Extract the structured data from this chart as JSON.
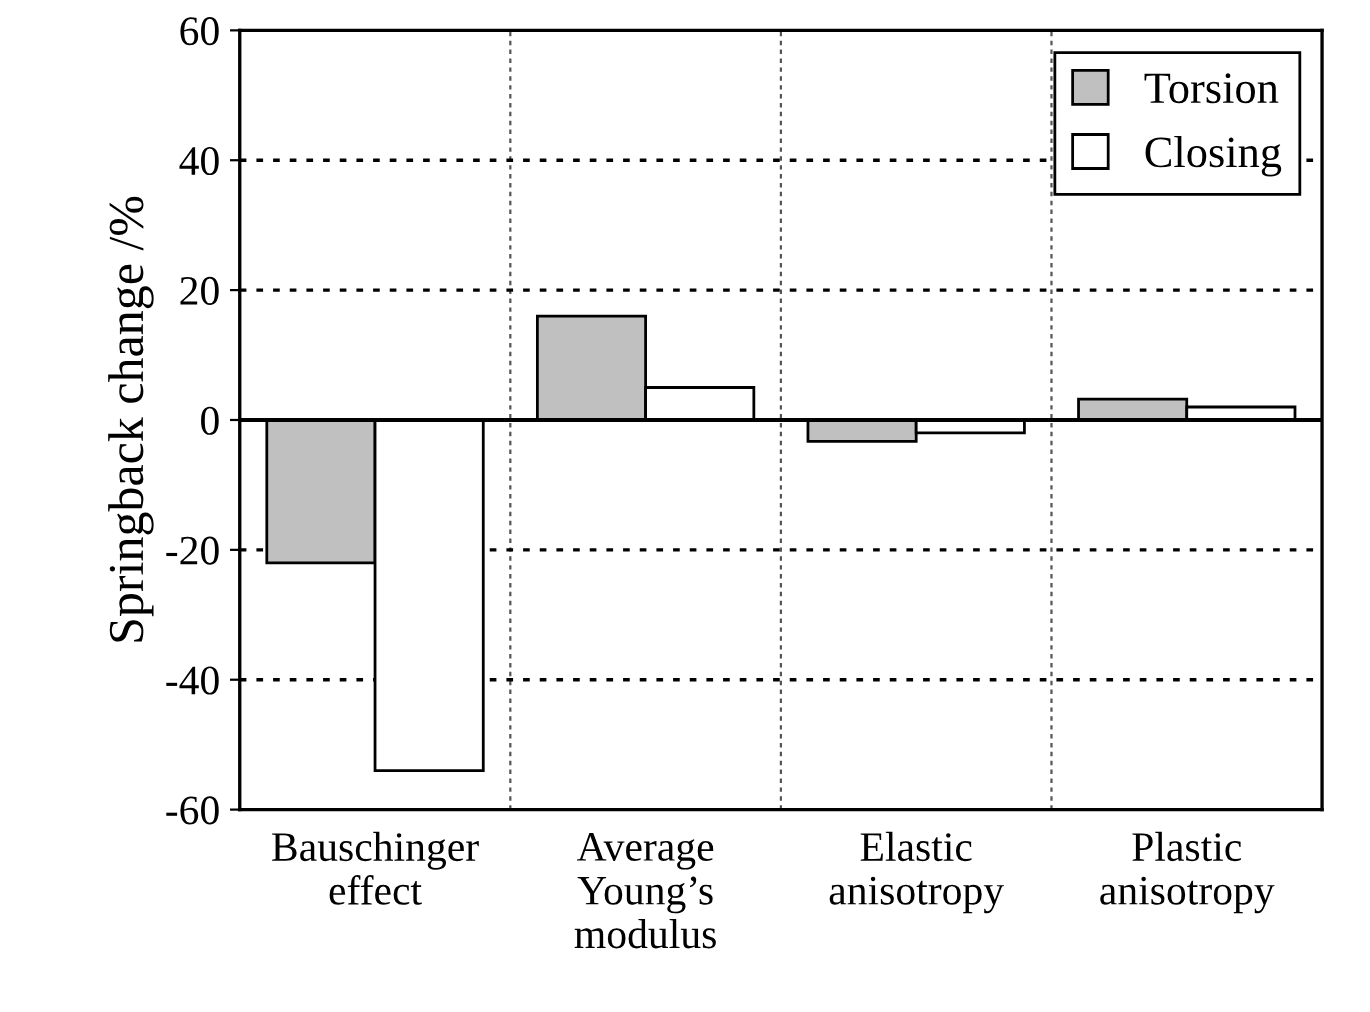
{
  "chart_data": {
    "type": "bar",
    "ylabel": "Springback change /%",
    "categories": [
      "Bauschinger\neffect",
      "Average\nYoung’s\nmodulus",
      "Elastic\nanisotropy",
      "Plastic\nanisotropy"
    ],
    "series": [
      {
        "name": "Torsion",
        "color": "#c0c0c0",
        "values": [
          -22,
          16,
          -3.3,
          3.2
        ]
      },
      {
        "name": "Closing",
        "color": "#ffffff",
        "values": [
          -54,
          5,
          -2,
          2
        ]
      }
    ],
    "ylim": [
      -60,
      60
    ],
    "yticks": [
      -60,
      -40,
      -20,
      0,
      20,
      40,
      60
    ],
    "grid": true,
    "legend": "top right"
  }
}
